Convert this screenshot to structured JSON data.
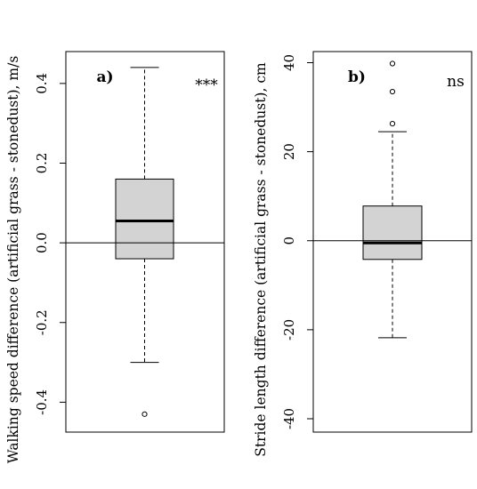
{
  "chart_data": [
    {
      "type": "box",
      "panel_label": "a)",
      "significance": "***",
      "ylabel": "Walking speed difference (artificial grass - stonedust), m/s",
      "ylim": [
        -0.475,
        0.48
      ],
      "yticks": [
        -0.4,
        -0.2,
        0.0,
        0.2,
        0.4
      ],
      "ytick_labels": [
        "-0.4",
        "-0.2",
        "0.0",
        "0.2",
        "0.4"
      ],
      "reference_line": 0,
      "box": {
        "whisker_low": -0.3,
        "q1": -0.04,
        "median": 0.055,
        "q3": 0.16,
        "whisker_high": 0.44,
        "outliers": [
          -0.43
        ]
      },
      "box_fill": "#d3d3d3"
    },
    {
      "type": "box",
      "panel_label": "b)",
      "significance": "ns",
      "ylabel": "Stride length difference (artificial grass - stonedust), cm",
      "ylim": [
        -43,
        42.5
      ],
      "yticks": [
        -40,
        -20,
        0,
        20,
        40
      ],
      "ytick_labels": [
        "-40",
        "-20",
        "0",
        "20",
        "40"
      ],
      "reference_line": 0,
      "box": {
        "whisker_low": -21.8,
        "q1": -4.2,
        "median": -0.5,
        "q3": 7.8,
        "whisker_high": 24.5,
        "outliers": [
          26.3,
          33.5,
          39.8
        ]
      },
      "box_fill": "#d3d3d3"
    }
  ]
}
